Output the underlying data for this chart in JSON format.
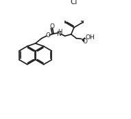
{
  "bg_color": "#ffffff",
  "line_color": "#1a1a1a",
  "lw": 1.2,
  "fs": 6.5,
  "figsize": [
    1.91,
    1.73
  ],
  "dpi": 100,
  "xlim": [
    0,
    191
  ],
  "ylim": [
    0,
    173
  ]
}
